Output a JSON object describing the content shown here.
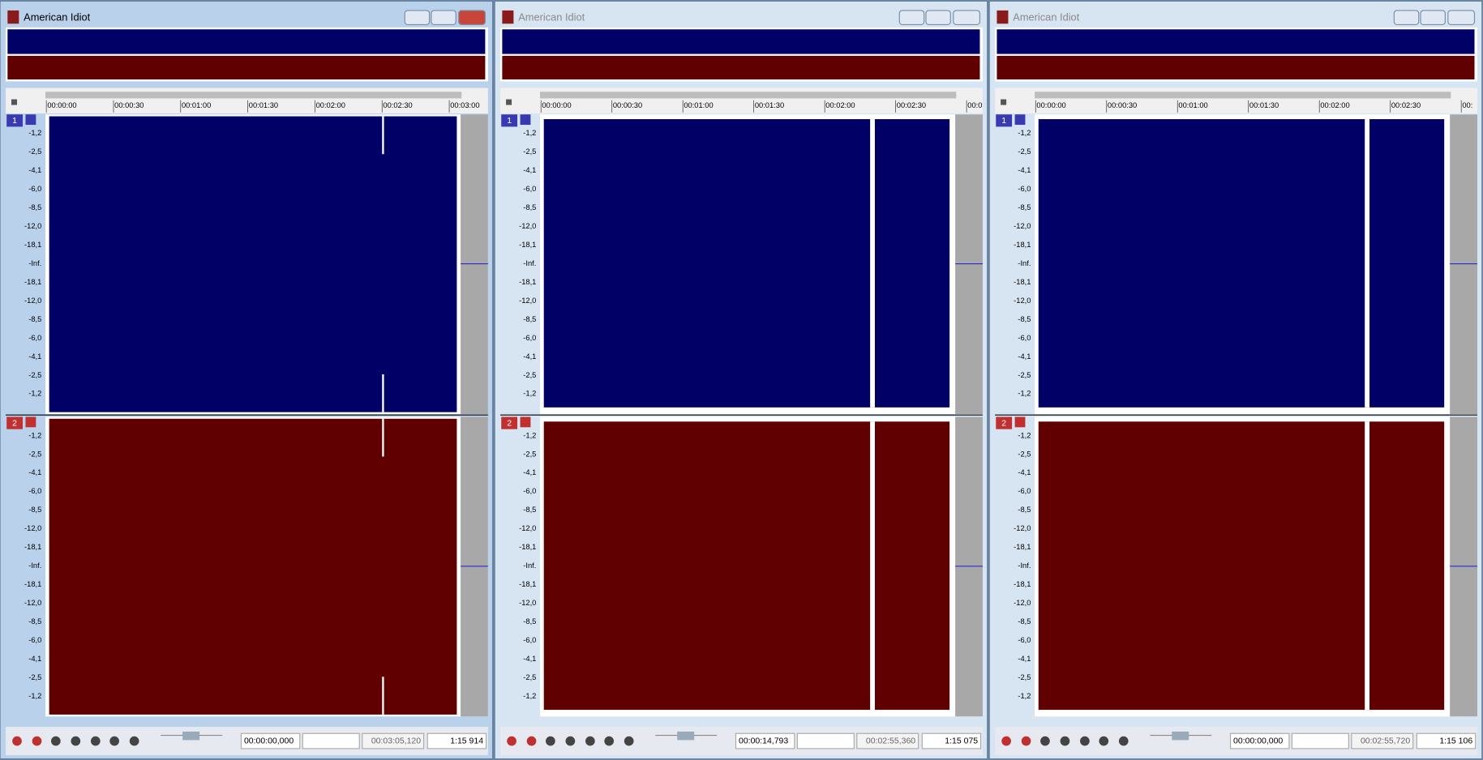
{
  "windows": [
    {
      "title": "American Idiot",
      "ruler": [
        "00:00:00",
        "00:00:30",
        "00:01:00",
        "00:01:30",
        "00:02:00",
        "00:02:30",
        "00:03:00"
      ],
      "status": {
        "position": "00:00:00,000",
        "length": "00:03:05,120",
        "zoom": "1:15 914"
      }
    },
    {
      "title": "American Idiot",
      "ruler": [
        "00:00:00",
        "00:00:30",
        "00:01:00",
        "00:01:30",
        "00:02:00",
        "00:02:30",
        "00:0"
      ],
      "status": {
        "position": "00:00:14,793",
        "length": "00:02:55,360",
        "zoom": "1:15 075"
      }
    },
    {
      "title": "American Idiot",
      "ruler": [
        "00:00:00",
        "00:00:30",
        "00:01:00",
        "00:01:30",
        "00:02:00",
        "00:02:30",
        "00:"
      ],
      "status": {
        "position": "00:00:00,000",
        "length": "00:02:55,720",
        "zoom": "1:15 106"
      }
    }
  ],
  "channels": [
    "1",
    "2"
  ],
  "db_scale": [
    "-1,2",
    "-2,5",
    "-4,1",
    "-6,0",
    "-8,5",
    "-12,0",
    "-18,1",
    "-Inf.",
    "-18,1",
    "-12,0",
    "-8,5",
    "-6,0",
    "-4,1",
    "-2,5",
    "-1,2"
  ]
}
